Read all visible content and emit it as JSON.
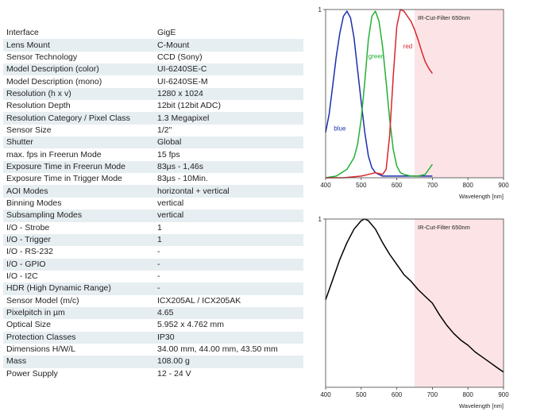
{
  "specs": [
    {
      "label": "Interface",
      "value": "GigE"
    },
    {
      "label": "Lens Mount",
      "value": "C-Mount"
    },
    {
      "label": "Sensor Technology",
      "value": "CCD (Sony)"
    },
    {
      "label": "Model Description (color)",
      "value": "UI-6240SE-C"
    },
    {
      "label": "Model Description (mono)",
      "value": "UI-6240SE-M"
    },
    {
      "label": "Resolution (h x v)",
      "value": "1280 x 1024"
    },
    {
      "label": "Resolution Depth",
      "value": "12bit (12bit ADC)"
    },
    {
      "label": "Resolution Category / Pixel Class",
      "value": "1.3 Megapixel"
    },
    {
      "label": "Sensor Size",
      "value": "1/2\""
    },
    {
      "label": "Shutter",
      "value": "Global"
    },
    {
      "label": "max. fps in Freerun Mode",
      "value": "15 fps"
    },
    {
      "label": "Exposure Time in Freerun Mode",
      "value": "83µs - 1,46s"
    },
    {
      "label": "Exposure Time in Trigger Mode",
      "value": "83µs - 10Min."
    },
    {
      "label": "AOI Modes",
      "value": "horizontal + vertical"
    },
    {
      "label": "Binning Modes",
      "value": "vertical"
    },
    {
      "label": "Subsampling Modes",
      "value": "vertical"
    },
    {
      "label": "I/O - Strobe",
      "value": "1"
    },
    {
      "label": "I/O - Trigger",
      "value": "1"
    },
    {
      "label": "I/O - RS-232",
      "value": "-"
    },
    {
      "label": "I/O - GPIO",
      "value": "-"
    },
    {
      "label": "I/O - I2C",
      "value": "-"
    },
    {
      "label": "HDR (High Dynamic Range)",
      "value": "-"
    },
    {
      "label": "Sensor Model (m/c)",
      "value": "ICX205AL / ICX205AK"
    },
    {
      "label": "Pixelpitch in µm",
      "value": "4.65"
    },
    {
      "label": "Optical Size",
      "value": "5.952 x 4.762 mm"
    },
    {
      "label": "Protection Classes",
      "value": "IP30"
    },
    {
      "label": "Dimensions H/W/L",
      "value": "34.00 mm, 44.00 mm, 43.50 mm"
    },
    {
      "label": "Mass",
      "value": "108.00 g"
    },
    {
      "label": "Power Supply",
      "value": "12 - 24 V"
    }
  ],
  "chart_data": [
    {
      "type": "line",
      "title": "",
      "xlabel": "Wavelength [nm]",
      "ylabel": "",
      "xlim": [
        400,
        900
      ],
      "ylim": [
        0,
        1
      ],
      "x_ticks": [
        "400",
        "500",
        "600",
        "700",
        "800",
        "900"
      ],
      "y_ticks": [
        "1"
      ],
      "grid": false,
      "filter_band": {
        "label": "IR-Cut-Filter 650nm",
        "from": 650,
        "to": 900,
        "color": "#fce4e6"
      },
      "series": [
        {
          "name": "blue",
          "color": "#1a2fb0",
          "x": [
            400,
            410,
            420,
            430,
            440,
            450,
            460,
            470,
            480,
            490,
            500,
            510,
            520,
            530,
            540,
            550,
            560,
            570,
            580,
            600,
            620,
            640,
            660,
            680,
            700
          ],
          "y": [
            0.27,
            0.38,
            0.55,
            0.72,
            0.86,
            0.96,
            0.99,
            0.95,
            0.83,
            0.64,
            0.45,
            0.27,
            0.13,
            0.06,
            0.03,
            0.02,
            0.01,
            0.01,
            0.01,
            0.01,
            0.01,
            0.01,
            0.01,
            0.01,
            0.01
          ]
        },
        {
          "name": "green",
          "color": "#22b033",
          "x": [
            400,
            430,
            460,
            480,
            490,
            500,
            510,
            520,
            530,
            540,
            550,
            560,
            570,
            580,
            590,
            600,
            610,
            620,
            640,
            660,
            680,
            690,
            700
          ],
          "y": [
            0.0,
            0.01,
            0.05,
            0.12,
            0.2,
            0.35,
            0.57,
            0.82,
            0.96,
            0.99,
            0.93,
            0.78,
            0.57,
            0.35,
            0.17,
            0.07,
            0.03,
            0.02,
            0.01,
            0.01,
            0.02,
            0.05,
            0.08
          ]
        },
        {
          "name": "red",
          "color": "#d9262c",
          "x": [
            400,
            450,
            500,
            520,
            540,
            560,
            570,
            580,
            590,
            600,
            610,
            620,
            630,
            640,
            650,
            660,
            670,
            680,
            690,
            700
          ],
          "y": [
            0.0,
            0.0,
            0.01,
            0.02,
            0.03,
            0.02,
            0.05,
            0.25,
            0.6,
            0.9,
            1.0,
            0.99,
            0.96,
            0.93,
            0.88,
            0.82,
            0.75,
            0.69,
            0.65,
            0.62
          ]
        }
      ]
    },
    {
      "type": "line",
      "title": "",
      "xlabel": "Wavelength [nm]",
      "ylabel": "",
      "xlim": [
        400,
        900
      ],
      "ylim": [
        0,
        1
      ],
      "x_ticks": [
        "400",
        "500",
        "600",
        "700",
        "800",
        "900"
      ],
      "y_ticks": [
        "1"
      ],
      "grid": false,
      "filter_band": {
        "label": "IR-Cut-Filter 650nm",
        "from": 650,
        "to": 900,
        "color": "#fce4e6"
      },
      "series": [
        {
          "name": "",
          "color": "#000000",
          "x": [
            400,
            420,
            440,
            460,
            480,
            500,
            510,
            520,
            540,
            560,
            580,
            600,
            620,
            640,
            660,
            680,
            700,
            720,
            740,
            760,
            780,
            800,
            820,
            840,
            860,
            880,
            900
          ],
          "y": [
            0.52,
            0.64,
            0.76,
            0.86,
            0.94,
            0.99,
            1.0,
            0.99,
            0.94,
            0.86,
            0.79,
            0.73,
            0.67,
            0.63,
            0.58,
            0.54,
            0.5,
            0.43,
            0.37,
            0.32,
            0.28,
            0.25,
            0.21,
            0.18,
            0.15,
            0.12,
            0.09
          ]
        }
      ]
    }
  ]
}
